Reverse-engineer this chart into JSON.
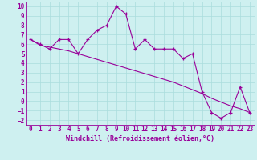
{
  "xlabel": "Windchill (Refroidissement éolien,°C)",
  "x_values": [
    0,
    1,
    2,
    3,
    4,
    5,
    6,
    7,
    8,
    9,
    10,
    11,
    12,
    13,
    14,
    15,
    16,
    17,
    18,
    19,
    20,
    21,
    22,
    23
  ],
  "y_data": [
    6.5,
    6.0,
    5.5,
    6.5,
    6.5,
    5.0,
    6.5,
    7.5,
    8.0,
    10.0,
    9.2,
    5.5,
    6.5,
    5.5,
    5.5,
    5.5,
    4.5,
    5.0,
    1.0,
    -1.2,
    -1.8,
    -1.2,
    1.5,
    -1.2
  ],
  "y_trend": [
    6.5,
    5.9,
    5.7,
    5.5,
    5.3,
    5.0,
    4.7,
    4.4,
    4.1,
    3.8,
    3.5,
    3.2,
    2.9,
    2.6,
    2.3,
    2.0,
    1.6,
    1.2,
    0.8,
    0.3,
    -0.1,
    -0.5,
    -0.8,
    -1.2
  ],
  "line_color": "#990099",
  "bg_color": "#cef0f0",
  "grid_color": "#aadddd",
  "ylim": [
    -2.5,
    10.5
  ],
  "xlim": [
    -0.5,
    23.5
  ],
  "yticks": [
    -2,
    -1,
    0,
    1,
    2,
    3,
    4,
    5,
    6,
    7,
    8,
    9,
    10
  ],
  "xticks": [
    0,
    1,
    2,
    3,
    4,
    5,
    6,
    7,
    8,
    9,
    10,
    11,
    12,
    13,
    14,
    15,
    16,
    17,
    18,
    19,
    20,
    21,
    22,
    23
  ],
  "tick_fontsize": 5.5,
  "xlabel_fontsize": 6.0
}
